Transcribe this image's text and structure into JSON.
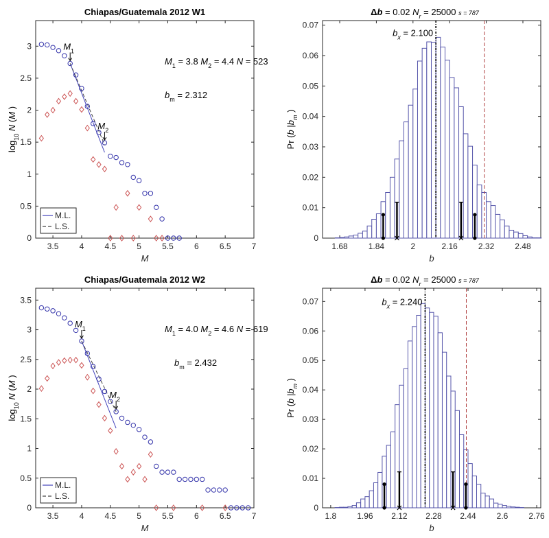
{
  "chart_data": [
    {
      "type": "scatter",
      "panel": "top-left",
      "title": "Chiapas/Guatemala 2012 W1",
      "xlabel": "M",
      "ylabel": "log10 N(M)",
      "xlim": [
        3.2,
        7.0
      ],
      "ylim": [
        0,
        3.4
      ],
      "xticks": [
        3.5,
        4,
        4.5,
        5,
        5.5,
        6,
        6.5,
        7
      ],
      "xtick_labels": [
        "3.5",
        "4",
        "4.5",
        "5",
        "5.5",
        "6",
        "6.5",
        "7"
      ],
      "yticks": [
        0,
        0.5,
        1,
        1.5,
        2,
        2.5,
        3
      ],
      "ytick_labels": [
        "0",
        "0.5",
        "1",
        "1.5",
        "2",
        "2.5",
        "3"
      ],
      "annotations": {
        "params_M1_label": "M",
        "params_M1_sub": "1",
        "params_M1_val": " = 3.8  ",
        "params_M2_label": "M",
        "params_M2_sub": "2",
        "params_M2_val": " = 4.4  ",
        "params_N_label": "N",
        "params_N_val": " = 523",
        "bm_label": "b",
        "bm_sub": "m",
        "bm_val": " = 2.312",
        "m1_marker": "M",
        "m1_marker_sub": "1",
        "m2_marker": "M",
        "m2_marker_sub": "2"
      },
      "M1": 3.8,
      "M2": 4.4,
      "N": 523,
      "b_m": 2.312,
      "series": [
        {
          "name": "cumulative",
          "marker": "circle",
          "color": "#3333aa",
          "x": [
            3.3,
            3.4,
            3.5,
            3.6,
            3.7,
            3.8,
            3.9,
            4.0,
            4.1,
            4.2,
            4.3,
            4.4,
            4.5,
            4.6,
            4.7,
            4.8,
            4.9,
            5.0,
            5.1,
            5.2,
            5.3,
            5.4,
            5.5,
            5.6,
            5.7
          ],
          "y": [
            3.03,
            3.02,
            2.98,
            2.93,
            2.85,
            2.73,
            2.55,
            2.34,
            2.06,
            1.79,
            1.65,
            1.49,
            1.28,
            1.26,
            1.18,
            1.15,
            0.95,
            0.9,
            0.7,
            0.7,
            0.48,
            0.3,
            0.0,
            0.0,
            0.0
          ]
        },
        {
          "name": "incremental",
          "marker": "diamond",
          "color": "#cc5555",
          "x": [
            3.3,
            3.4,
            3.5,
            3.6,
            3.7,
            3.8,
            3.9,
            4.0,
            4.1,
            4.2,
            4.3,
            4.4,
            4.5,
            4.6,
            4.7,
            4.8,
            4.9,
            5.0,
            5.2,
            5.3,
            5.4
          ],
          "y": [
            1.56,
            1.93,
            2.0,
            2.14,
            2.21,
            2.26,
            2.14,
            2.01,
            1.72,
            1.23,
            1.15,
            1.08,
            0.0,
            0.48,
            0.0,
            0.7,
            0.0,
            0.48,
            0.3,
            0.0,
            0.0
          ]
        }
      ],
      "fit_lines": [
        {
          "name": "M.L.",
          "style": "solid",
          "color": "#4444bb",
          "x": [
            3.8,
            4.4
          ],
          "y": [
            2.73,
            1.34
          ]
        },
        {
          "name": "L.S.",
          "style": "dashed",
          "color": "#444444",
          "x": [
            3.8,
            4.4
          ],
          "y": [
            2.73,
            1.46
          ]
        }
      ],
      "legend": {
        "position": "bottom-left",
        "entries": [
          "M.L.",
          "L.S."
        ]
      }
    },
    {
      "type": "bar",
      "panel": "top-right",
      "title_delta": "Δ",
      "title_b": "b",
      "title_rest1": " = 0.02  ",
      "title_N": "N",
      "title_Nsub": "r",
      "title_rest2": " = 25000  ",
      "title_s": "s = 787",
      "xlabel": "b",
      "ylabel": "Pr(b|b_m)",
      "xlim": [
        1.605,
        2.558
      ],
      "ylim": [
        0,
        0.0715
      ],
      "xticks": [
        1.68,
        1.84,
        2.0,
        2.16,
        2.32,
        2.48
      ],
      "xtick_labels": [
        "1.68",
        "1.84",
        "2",
        "2.16",
        "2.32",
        "2.48"
      ],
      "yticks": [
        0,
        0.01,
        0.02,
        0.03,
        0.04,
        0.05,
        0.06,
        0.07
      ],
      "ytick_labels": [
        "0",
        "0.01",
        "0.02",
        "0.03",
        "0.04",
        "0.05",
        "0.06",
        "0.07"
      ],
      "bin_width": 0.02,
      "bin_start": 1.66,
      "values": [
        0.0001,
        0.0002,
        0.0004,
        0.0007,
        0.001,
        0.0016,
        0.0023,
        0.004,
        0.0062,
        0.008,
        0.012,
        0.015,
        0.02,
        0.026,
        0.032,
        0.0382,
        0.0437,
        0.049,
        0.0582,
        0.0624,
        0.0645,
        0.0644,
        0.066,
        0.0628,
        0.0585,
        0.0528,
        0.0494,
        0.0432,
        0.0343,
        0.0302,
        0.024,
        0.0175,
        0.015,
        0.012,
        0.0107,
        0.0078,
        0.006,
        0.004,
        0.0026,
        0.002,
        0.0015,
        0.0008,
        0.0004,
        0.0001,
        0.0001
      ],
      "b_x_label": "b",
      "b_x_sub": "x",
      "b_x_val": " = 2.100",
      "b_x": 2.1,
      "b_m": 2.312,
      "error_bars": [
        {
          "x": 1.87,
          "top": 0.0077,
          "style": "dot"
        },
        {
          "x": 1.93,
          "top": 0.0118,
          "style": "cross"
        },
        {
          "x": 2.21,
          "top": 0.0118,
          "style": "cross"
        },
        {
          "x": 2.27,
          "top": 0.0077,
          "style": "dot"
        }
      ]
    },
    {
      "type": "scatter",
      "panel": "bottom-left",
      "title": "Chiapas/Guatemala 2012 W2",
      "xlabel": "M",
      "ylabel": "log10 N(M)",
      "xlim": [
        3.2,
        7.0
      ],
      "ylim": [
        0,
        3.7
      ],
      "xticks": [
        3.5,
        4,
        4.5,
        5,
        5.5,
        6,
        6.5,
        7
      ],
      "xtick_labels": [
        "3.5",
        "4",
        "4.5",
        "5",
        "5.5",
        "6",
        "6.5",
        "7"
      ],
      "yticks": [
        0,
        0.5,
        1,
        1.5,
        2,
        2.5,
        3,
        3.5
      ],
      "ytick_labels": [
        "0",
        "0.5",
        "1",
        "1.5",
        "2",
        "2.5",
        "3",
        "3.5"
      ],
      "annotations": {
        "params_M1_label": "M",
        "params_M1_sub": "1",
        "params_M1_val": " = 4.0  ",
        "params_M2_label": "M",
        "params_M2_sub": "2",
        "params_M2_val": " = 4.6  ",
        "params_N_label": "N",
        "params_N_val": " = 619",
        "bm_label": "b",
        "bm_sub": "m",
        "bm_val": " = 2.432",
        "m1_marker": "M",
        "m1_marker_sub": "1",
        "m2_marker": "M",
        "m2_marker_sub": "2"
      },
      "M1": 4.0,
      "M2": 4.6,
      "N": 619,
      "b_m": 2.432,
      "series": [
        {
          "name": "cumulative",
          "marker": "circle",
          "color": "#3333aa",
          "x": [
            3.3,
            3.4,
            3.5,
            3.6,
            3.7,
            3.8,
            3.9,
            4.0,
            4.1,
            4.2,
            4.3,
            4.4,
            4.5,
            4.6,
            4.7,
            4.8,
            4.9,
            5.0,
            5.1,
            5.2,
            5.3,
            5.4,
            5.5,
            5.6,
            5.7,
            5.8,
            5.9,
            6.0,
            6.1,
            6.2,
            6.3,
            6.4,
            6.5,
            6.6,
            6.7,
            6.8,
            6.9
          ],
          "y": [
            3.37,
            3.35,
            3.32,
            3.27,
            3.2,
            3.11,
            2.99,
            2.81,
            2.6,
            2.38,
            2.17,
            1.96,
            1.79,
            1.62,
            1.51,
            1.44,
            1.39,
            1.32,
            1.19,
            1.11,
            0.7,
            0.6,
            0.6,
            0.6,
            0.48,
            0.48,
            0.48,
            0.48,
            0.48,
            0.3,
            0.3,
            0.3,
            0.3,
            0.0,
            0.0,
            0.0,
            0.0
          ]
        },
        {
          "name": "incremental",
          "marker": "diamond",
          "color": "#cc5555",
          "x": [
            3.3,
            3.4,
            3.5,
            3.6,
            3.7,
            3.8,
            3.9,
            4.0,
            4.1,
            4.2,
            4.3,
            4.4,
            4.5,
            4.6,
            4.7,
            4.8,
            4.9,
            5.0,
            5.1,
            5.2,
            5.3,
            5.6,
            6.1,
            6.5
          ],
          "y": [
            2.01,
            2.18,
            2.39,
            2.45,
            2.48,
            2.49,
            2.49,
            2.4,
            2.2,
            1.97,
            1.74,
            1.51,
            1.3,
            0.95,
            0.7,
            0.48,
            0.6,
            0.7,
            0.48,
            0.9,
            0.0,
            0.0,
            0.0,
            0.0
          ]
        }
      ],
      "fit_lines": [
        {
          "name": "M.L.",
          "style": "solid",
          "color": "#4444bb",
          "x": [
            4.0,
            4.6
          ],
          "y": [
            2.81,
            1.34
          ]
        },
        {
          "name": "L.S.",
          "style": "dashed",
          "color": "#444444",
          "x": [
            4.0,
            4.6
          ],
          "y": [
            2.81,
            1.62
          ]
        }
      ],
      "legend": {
        "position": "bottom-left",
        "entries": [
          "M.L.",
          "L.S."
        ]
      }
    },
    {
      "type": "bar",
      "panel": "bottom-right",
      "title_delta": "Δ",
      "title_b": "b",
      "title_rest1": " = 0.02  ",
      "title_N": "N",
      "title_Nsub": "r",
      "title_rest2": " = 25000  ",
      "title_s": "s = 787",
      "xlabel": "b",
      "ylabel": "Pr(b|b_m)",
      "xlim": [
        1.762,
        2.779
      ],
      "ylim": [
        0,
        0.0745
      ],
      "xticks": [
        1.8,
        1.96,
        2.12,
        2.28,
        2.44,
        2.6,
        2.76
      ],
      "xtick_labels": [
        "1.8",
        "1.96",
        "2.12",
        "2.28",
        "2.44",
        "2.6",
        "2.76"
      ],
      "yticks": [
        0,
        0.01,
        0.02,
        0.03,
        0.04,
        0.05,
        0.06,
        0.07
      ],
      "ytick_labels": [
        "0",
        "0.01",
        "0.02",
        "0.03",
        "0.04",
        "0.05",
        "0.06",
        "0.07"
      ],
      "bin_width": 0.02,
      "bin_start": 1.82,
      "values": [
        0.0001,
        0.0002,
        0.0002,
        0.0004,
        0.0008,
        0.0017,
        0.003,
        0.0038,
        0.0058,
        0.0085,
        0.012,
        0.0175,
        0.0212,
        0.0258,
        0.035,
        0.0416,
        0.0472,
        0.0566,
        0.0615,
        0.0653,
        0.0693,
        0.0678,
        0.0663,
        0.065,
        0.0594,
        0.0528,
        0.0447,
        0.0396,
        0.033,
        0.0248,
        0.0197,
        0.015,
        0.0108,
        0.008,
        0.005,
        0.004,
        0.003,
        0.0016,
        0.0012,
        0.0008,
        0.0005,
        0.0003,
        0.0002,
        0.0001
      ],
      "b_x_label": "b",
      "b_x_sub": "x",
      "b_x_val": " = 2.240",
      "b_x": 2.24,
      "b_m": 2.432,
      "error_bars": [
        {
          "x": 2.05,
          "top": 0.008,
          "style": "dot"
        },
        {
          "x": 2.12,
          "top": 0.0122,
          "style": "cross"
        },
        {
          "x": 2.37,
          "top": 0.0122,
          "style": "cross"
        },
        {
          "x": 2.43,
          "top": 0.008,
          "style": "dot"
        }
      ]
    }
  ]
}
